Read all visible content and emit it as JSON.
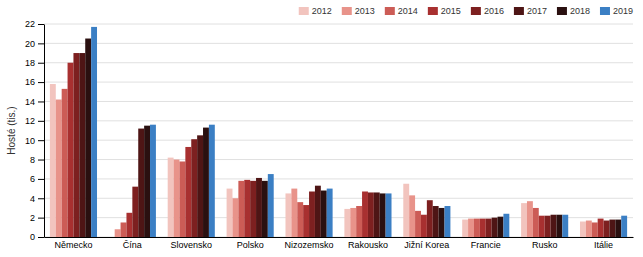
{
  "chart_data": {
    "type": "bar",
    "ylabel": "Hosté (tis.)",
    "categories": [
      "Německo",
      "Čína",
      "Slovensko",
      "Polsko",
      "Nizozemsko",
      "Rakousko",
      "Jižní Korea",
      "Francie",
      "Rusko",
      "Itálie"
    ],
    "series": [
      {
        "name": "2012",
        "color": "#f2c4be",
        "values": [
          15.8,
          0.0,
          8.2,
          5.0,
          4.5,
          2.9,
          5.5,
          1.8,
          3.5,
          1.6
        ]
      },
      {
        "name": "2013",
        "color": "#e8938a",
        "values": [
          14.2,
          0.8,
          8.0,
          4.0,
          5.0,
          3.0,
          4.3,
          1.9,
          3.7,
          1.7
        ]
      },
      {
        "name": "2014",
        "color": "#cc5c56",
        "values": [
          15.3,
          1.5,
          7.8,
          5.8,
          3.6,
          3.2,
          2.7,
          1.9,
          3.0,
          1.5
        ]
      },
      {
        "name": "2015",
        "color": "#a83030",
        "values": [
          18.0,
          2.5,
          9.3,
          5.9,
          3.3,
          4.7,
          2.3,
          1.9,
          2.2,
          1.9
        ]
      },
      {
        "name": "2016",
        "color": "#7d2020",
        "values": [
          19.0,
          5.2,
          10.1,
          5.8,
          4.7,
          4.6,
          3.8,
          1.9,
          2.2,
          1.7
        ]
      },
      {
        "name": "2017",
        "color": "#4e1515",
        "values": [
          19.0,
          11.2,
          10.5,
          6.1,
          5.3,
          4.6,
          3.2,
          2.0,
          2.3,
          1.8
        ]
      },
      {
        "name": "2018",
        "color": "#2a1010",
        "values": [
          20.5,
          11.5,
          11.3,
          5.8,
          4.8,
          4.5,
          3.0,
          2.1,
          2.3,
          1.8
        ]
      },
      {
        "name": "2019",
        "color": "#3b7fc4",
        "values": [
          21.7,
          11.6,
          11.6,
          6.5,
          5.0,
          4.5,
          3.2,
          2.4,
          2.3,
          2.2
        ]
      }
    ],
    "ylim": [
      0,
      22
    ],
    "yticks": [
      0,
      2,
      4,
      6,
      8,
      10,
      12,
      14,
      16,
      18,
      20,
      22
    ],
    "grid": true,
    "legend": "upper right"
  }
}
